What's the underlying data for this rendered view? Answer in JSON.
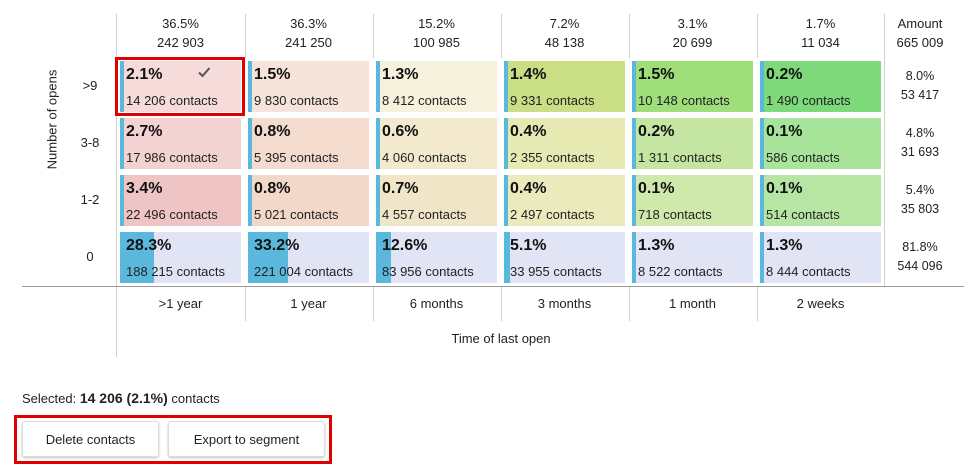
{
  "columns": [
    {
      "pct": "36.5%",
      "count": "242 903",
      "label": ">1 year"
    },
    {
      "pct": "36.3%",
      "count": "241 250",
      "label": "1 year"
    },
    {
      "pct": "15.2%",
      "count": "100 985",
      "label": "6 months"
    },
    {
      "pct": "7.2%",
      "count": "48 138",
      "label": "3 months"
    },
    {
      "pct": "3.1%",
      "count": "20 699",
      "label": "1 month"
    },
    {
      "pct": "1.7%",
      "count": "11 034",
      "label": "2 weeks"
    }
  ],
  "amount_header": {
    "label": "Amount",
    "value": "665 009"
  },
  "y_axis_title": "Number of opens",
  "x_axis_title": "Time of last open",
  "rows": [
    {
      "label": ">9",
      "total_pct": "8.0%",
      "total_count": "53 417",
      "cells": [
        {
          "pct": "2.1%",
          "contacts": "14 206 contacts",
          "bar_fraction": 0.021,
          "color": "#f5dcdb"
        },
        {
          "pct": "1.5%",
          "contacts": "9 830 contacts",
          "bar_fraction": 0.015,
          "color": "#f6e4da"
        },
        {
          "pct": "1.3%",
          "contacts": "8 412 contacts",
          "bar_fraction": 0.013,
          "color": "#f5f1dc"
        },
        {
          "pct": "1.4%",
          "contacts": "9 331 contacts",
          "bar_fraction": 0.014,
          "color": "#c9de85"
        },
        {
          "pct": "1.5%",
          "contacts": "10 148 contacts",
          "bar_fraction": 0.015,
          "color": "#a0dd7b"
        },
        {
          "pct": "0.2%",
          "contacts": "1 490 contacts",
          "bar_fraction": 0.002,
          "color": "#7ed97a"
        }
      ]
    },
    {
      "label": "3-8",
      "total_pct": "4.8%",
      "total_count": "31 693",
      "cells": [
        {
          "pct": "2.7%",
          "contacts": "17 986 contacts",
          "bar_fraction": 0.027,
          "color": "#f3d3d2"
        },
        {
          "pct": "0.8%",
          "contacts": "5 395 contacts",
          "bar_fraction": 0.008,
          "color": "#f3dcce"
        },
        {
          "pct": "0.6%",
          "contacts": "4 060 contacts",
          "bar_fraction": 0.006,
          "color": "#f3eacd"
        },
        {
          "pct": "0.4%",
          "contacts": "2 355 contacts",
          "bar_fraction": 0.004,
          "color": "#e6eab2"
        },
        {
          "pct": "0.2%",
          "contacts": "1 311 contacts",
          "bar_fraction": 0.002,
          "color": "#c5e6a2"
        },
        {
          "pct": "0.1%",
          "contacts": "586 contacts",
          "bar_fraction": 0.001,
          "color": "#a8e49a"
        }
      ]
    },
    {
      "label": "1-2",
      "total_pct": "5.4%",
      "total_count": "35 803",
      "cells": [
        {
          "pct": "3.4%",
          "contacts": "22 496 contacts",
          "bar_fraction": 0.034,
          "color": "#efc4c4"
        },
        {
          "pct": "0.8%",
          "contacts": "5 021 contacts",
          "bar_fraction": 0.008,
          "color": "#f1d8c9"
        },
        {
          "pct": "0.7%",
          "contacts": "4 557 contacts",
          "bar_fraction": 0.007,
          "color": "#f1e5c7"
        },
        {
          "pct": "0.4%",
          "contacts": "2 497 contacts",
          "bar_fraction": 0.004,
          "color": "#eaeabd"
        },
        {
          "pct": "0.1%",
          "contacts": "718 contacts",
          "bar_fraction": 0.001,
          "color": "#cfe9ad"
        },
        {
          "pct": "0.1%",
          "contacts": "514 contacts",
          "bar_fraction": 0.001,
          "color": "#b7e6a4"
        }
      ]
    },
    {
      "label": "0",
      "total_pct": "81.8%",
      "total_count": "544 096",
      "cells": [
        {
          "pct": "28.3%",
          "contacts": "188 215 contacts",
          "bar_fraction": 0.283,
          "color": "#e0e4f4"
        },
        {
          "pct": "33.2%",
          "contacts": "221 004 contacts",
          "bar_fraction": 0.332,
          "color": "#e0e4f4"
        },
        {
          "pct": "12.6%",
          "contacts": "83 956 contacts",
          "bar_fraction": 0.126,
          "color": "#e0e4f4"
        },
        {
          "pct": "5.1%",
          "contacts": "33 955 contacts",
          "bar_fraction": 0.051,
          "color": "#e0e4f4"
        },
        {
          "pct": "1.3%",
          "contacts": "8 522 contacts",
          "bar_fraction": 0.013,
          "color": "#e0e4f4"
        },
        {
          "pct": "1.3%",
          "contacts": "8 444 contacts",
          "bar_fraction": 0.013,
          "color": "#e0e4f4"
        }
      ]
    }
  ],
  "bar_color": "#5ab8dc",
  "highlight_color": "#e00000",
  "selected_cell": {
    "row": 0,
    "col": 0,
    "icon": "checkmark-icon"
  },
  "selection": {
    "prefix": "Selected: ",
    "value": "14 206 (2.1%)",
    "suffix": " contacts"
  },
  "buttons": {
    "delete": "Delete contacts",
    "export": "Export to segment"
  }
}
